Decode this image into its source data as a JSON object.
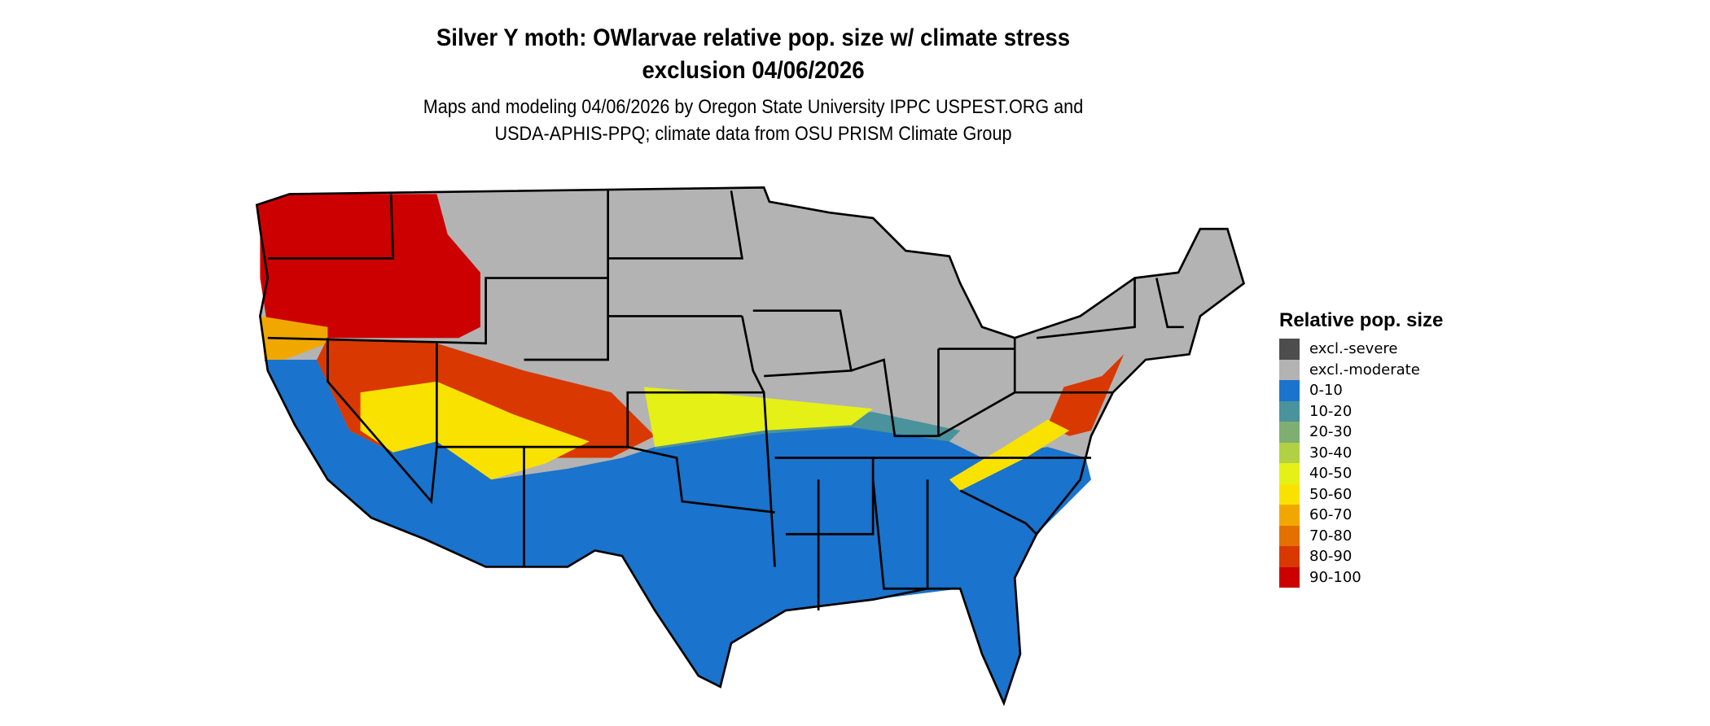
{
  "title": {
    "line1": "Silver Y moth: OWlarvae relative pop. size w/ climate stress",
    "line2": "exclusion 04/06/2026"
  },
  "subtitle": {
    "line1": "Maps and modeling 04/06/2026 by Oregon State University IPPC USPEST.ORG and",
    "line2": "USDA-APHIS-PPQ; climate data from OSU PRISM Climate Group"
  },
  "legend": {
    "title": "Relative pop. size",
    "items": [
      {
        "label": "excl.-severe",
        "color": "#4d4d4d"
      },
      {
        "label": "excl.-moderate",
        "color": "#b3b3b3"
      },
      {
        "label": "0-10",
        "color": "#1a73cc"
      },
      {
        "label": "10-20",
        "color": "#4a929c"
      },
      {
        "label": "20-30",
        "color": "#7fae72"
      },
      {
        "label": "30-40",
        "color": "#b2d043"
      },
      {
        "label": "40-50",
        "color": "#e5f016"
      },
      {
        "label": "50-60",
        "color": "#f9e200"
      },
      {
        "label": "60-70",
        "color": "#f0a800"
      },
      {
        "label": "70-80",
        "color": "#e47000"
      },
      {
        "label": "80-90",
        "color": "#d93800"
      },
      {
        "label": "90-100",
        "color": "#cc0000"
      }
    ]
  }
}
